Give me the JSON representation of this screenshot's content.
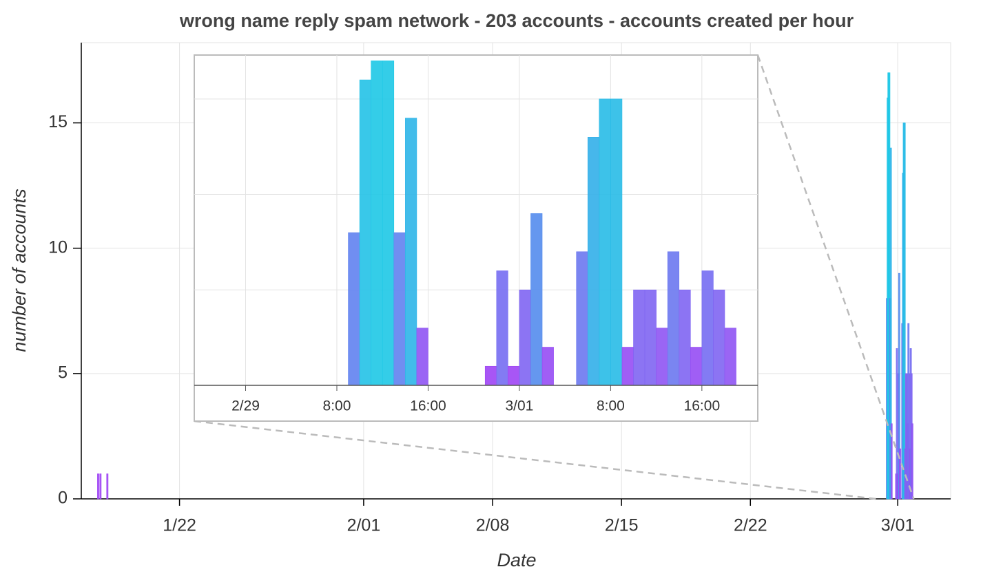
{
  "chart_data": {
    "type": "bar",
    "title": "wrong name reply spam network - 203 accounts -  accounts created per hour",
    "x_label": "Date",
    "y_label": "number of accounts",
    "x": [
      397,
      400,
      409,
      1425,
      1426,
      1427,
      1428,
      1429,
      1430,
      1431,
      1437,
      1438,
      1439,
      1440,
      1441,
      1442,
      1445,
      1446,
      1447,
      1448,
      1449,
      1450,
      1451,
      1452,
      1453,
      1454,
      1455,
      1456,
      1457,
      1458
    ],
    "values": [
      1,
      1,
      1,
      8,
      16,
      17,
      17,
      8,
      14,
      3,
      1,
      6,
      1,
      5,
      9,
      2,
      7,
      13,
      15,
      15,
      2,
      5,
      5,
      3,
      7,
      5,
      2,
      6,
      5,
      3
    ],
    "bin_width": 1,
    "colormap": [
      "#a63cf5",
      "#7a6af2",
      "#3aa4ea",
      "#1ec8e6"
    ],
    "xlim": [
      376,
      1509
    ],
    "xticks": [
      {
        "value": 504,
        "label": "1/22"
      },
      {
        "value": 744,
        "label": "2/01"
      },
      {
        "value": 912,
        "label": "2/08"
      },
      {
        "value": 1080,
        "label": "2/15"
      },
      {
        "value": 1248,
        "label": "2/22"
      },
      {
        "value": 1440,
        "label": "3/01"
      }
    ],
    "ylim": [
      0,
      18.2
    ],
    "yticks": [
      0,
      5,
      10,
      15
    ],
    "grid": true,
    "inset": {
      "xlim": [
        1411.5,
        1460.9
      ],
      "ylim": [
        0,
        17.3
      ],
      "xticks": [
        {
          "value": 1416,
          "label": "2/29"
        },
        {
          "value": 1424,
          "label": "8:00"
        },
        {
          "value": 1432,
          "label": "16:00"
        },
        {
          "value": 1440,
          "label": "3/01"
        },
        {
          "value": 1448,
          "label": "8:00"
        },
        {
          "value": 1456,
          "label": "16:00"
        }
      ],
      "yticks": [
        0,
        5,
        10,
        15
      ]
    }
  }
}
